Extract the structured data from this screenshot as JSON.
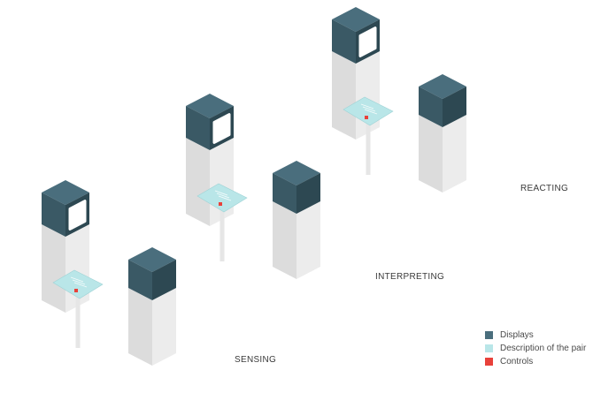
{
  "colors": {
    "display_top": "#4a6e7d",
    "display_left": "#3a5965",
    "display_right": "#2d4852",
    "screen": "#ffffff",
    "pillar_left": "#dcdcdc",
    "pillar_right": "#ececec",
    "pillar_top": "#f3f3f3",
    "description": "#b9e6e8",
    "description_stroke": "#9fd3d6",
    "control": "#e8413a",
    "stand": "#e6e6e6"
  },
  "stages": [
    {
      "id": "sensing",
      "label": "SENSING"
    },
    {
      "id": "interpreting",
      "label": "INTERPRETING"
    },
    {
      "id": "reacting",
      "label": "REACTING"
    }
  ],
  "legend": [
    {
      "id": "displays",
      "label": "Displays",
      "color": "#4a6e7d"
    },
    {
      "id": "description",
      "label": "Description of the pair",
      "color": "#b9e6e8"
    },
    {
      "id": "controls",
      "label": "Controls",
      "color": "#e8413a"
    }
  ]
}
